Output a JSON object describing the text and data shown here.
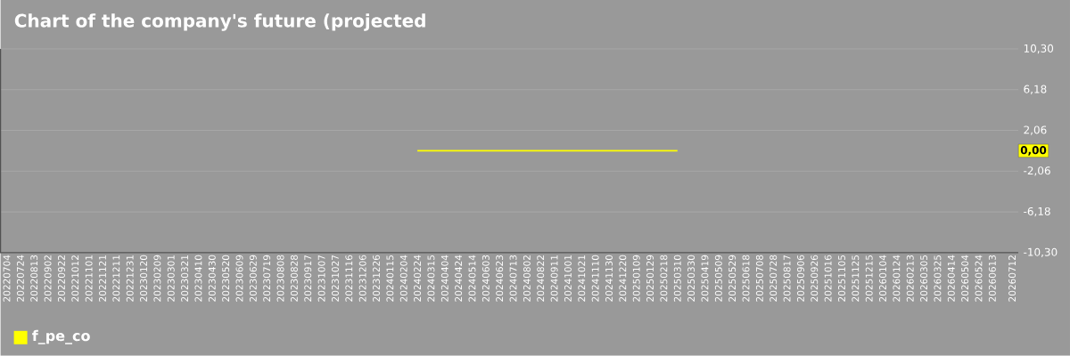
{
  "chart_data": {
    "type": "line",
    "title": "Chart of the company's future (projected",
    "series": [
      {
        "name": "f_pe_co",
        "color": "#ffff00",
        "x": [
          "2024-02-24",
          "2025-03-10"
        ],
        "values": [
          0,
          0
        ]
      }
    ],
    "annotations": [
      {
        "text": "0,00",
        "y": 0
      }
    ],
    "xlim": [
      "2022-06-25",
      "2026-07-21"
    ],
    "xticks": [
      {
        "value": "2022-07-04",
        "label": "20220704"
      },
      {
        "value": "2022-07-24",
        "label": "20220724"
      },
      {
        "value": "2022-08-13",
        "label": "20220813"
      },
      {
        "value": "2022-09-02",
        "label": "20220902"
      },
      {
        "value": "2022-09-22",
        "label": "20220922"
      },
      {
        "value": "2022-10-12",
        "label": "20221012"
      },
      {
        "value": "2022-11-01",
        "label": "20221101"
      },
      {
        "value": "2022-11-21",
        "label": "20221121"
      },
      {
        "value": "2022-12-11",
        "label": "20221211"
      },
      {
        "value": "2022-12-31",
        "label": "20221231"
      },
      {
        "value": "2023-01-20",
        "label": "20230120"
      },
      {
        "value": "2023-02-09",
        "label": "20230209"
      },
      {
        "value": "2023-03-01",
        "label": "20230301"
      },
      {
        "value": "2023-03-21",
        "label": "20230321"
      },
      {
        "value": "2023-04-10",
        "label": "20230410"
      },
      {
        "value": "2023-04-30",
        "label": "20230430"
      },
      {
        "value": "2023-05-20",
        "label": "20230520"
      },
      {
        "value": "2023-06-09",
        "label": "20230609"
      },
      {
        "value": "2023-06-29",
        "label": "20230629"
      },
      {
        "value": "2023-07-19",
        "label": "20230719"
      },
      {
        "value": "2023-08-08",
        "label": "20230808"
      },
      {
        "value": "2023-08-28",
        "label": "20230828"
      },
      {
        "value": "2023-09-17",
        "label": "20230917"
      },
      {
        "value": "2023-10-07",
        "label": "20231007"
      },
      {
        "value": "2023-10-27",
        "label": "20231027"
      },
      {
        "value": "2023-11-16",
        "label": "20231116"
      },
      {
        "value": "2023-12-06",
        "label": "20231206"
      },
      {
        "value": "2023-12-26",
        "label": "20231226"
      },
      {
        "value": "2024-01-15",
        "label": "20240115"
      },
      {
        "value": "2024-02-04",
        "label": "20240204"
      },
      {
        "value": "2024-02-24",
        "label": "20240224"
      },
      {
        "value": "2024-03-15",
        "label": "20240315"
      },
      {
        "value": "2024-04-04",
        "label": "20240404"
      },
      {
        "value": "2024-04-24",
        "label": "20240424"
      },
      {
        "value": "2024-05-14",
        "label": "20240514"
      },
      {
        "value": "2024-06-03",
        "label": "20240603"
      },
      {
        "value": "2024-06-23",
        "label": "20240623"
      },
      {
        "value": "2024-07-13",
        "label": "20240713"
      },
      {
        "value": "2024-08-02",
        "label": "20240802"
      },
      {
        "value": "2024-08-22",
        "label": "20240822"
      },
      {
        "value": "2024-09-11",
        "label": "20240911"
      },
      {
        "value": "2024-10-01",
        "label": "20241001"
      },
      {
        "value": "2024-10-21",
        "label": "20241021"
      },
      {
        "value": "2024-11-10",
        "label": "20241110"
      },
      {
        "value": "2024-11-30",
        "label": "20241130"
      },
      {
        "value": "2024-12-20",
        "label": "20241220"
      },
      {
        "value": "2025-01-09",
        "label": "20250109"
      },
      {
        "value": "2025-01-29",
        "label": "20250129"
      },
      {
        "value": "2025-02-18",
        "label": "20250218"
      },
      {
        "value": "2025-03-10",
        "label": "20250310"
      },
      {
        "value": "2025-03-30",
        "label": "20250330"
      },
      {
        "value": "2025-04-19",
        "label": "20250419"
      },
      {
        "value": "2025-05-09",
        "label": "20250509"
      },
      {
        "value": "2025-05-29",
        "label": "20250529"
      },
      {
        "value": "2025-06-18",
        "label": "20250618"
      },
      {
        "value": "2025-07-08",
        "label": "20250708"
      },
      {
        "value": "2025-07-28",
        "label": "20250728"
      },
      {
        "value": "2025-08-17",
        "label": "20250817"
      },
      {
        "value": "2025-09-06",
        "label": "20250906"
      },
      {
        "value": "2025-09-26",
        "label": "20250926"
      },
      {
        "value": "2025-10-16",
        "label": "20251016"
      },
      {
        "value": "2025-11-05",
        "label": "20251105"
      },
      {
        "value": "2025-11-25",
        "label": "20251125"
      },
      {
        "value": "2025-12-15",
        "label": "20251215"
      },
      {
        "value": "2026-01-04",
        "label": "20260104"
      },
      {
        "value": "2026-01-24",
        "label": "20260124"
      },
      {
        "value": "2026-02-13",
        "label": "20260213"
      },
      {
        "value": "2026-03-05",
        "label": "20260305"
      },
      {
        "value": "2026-03-25",
        "label": "20260325"
      },
      {
        "value": "2026-04-14",
        "label": "20260414"
      },
      {
        "value": "2026-05-04",
        "label": "20260504"
      },
      {
        "value": "2026-05-24",
        "label": "20260524"
      },
      {
        "value": "2026-06-13",
        "label": "20260613"
      },
      {
        "value": "2026-07-12",
        "label": "20260712"
      }
    ],
    "ylim": [
      -10.3,
      10.3
    ],
    "yticks": [
      {
        "value": 10.3,
        "label": "10,30"
      },
      {
        "value": 6.18,
        "label": "6,18"
      },
      {
        "value": 2.06,
        "label": "2,06"
      },
      {
        "value": -2.06,
        "label": "-2,06"
      },
      {
        "value": -6.18,
        "label": "-6,18"
      },
      {
        "value": -10.3,
        "label": "-10,30"
      }
    ],
    "grid": "y",
    "legend": "bottom"
  }
}
